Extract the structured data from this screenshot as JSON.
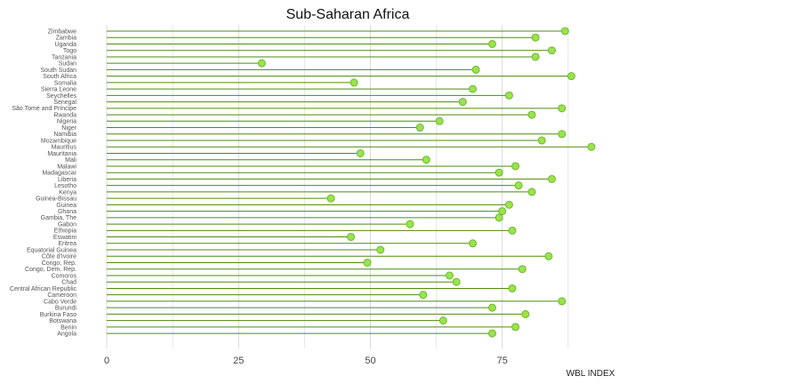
{
  "chart_data": {
    "type": "lollipop",
    "title": "Sub-Saharan Africa",
    "xlabel": "WBL INDEX",
    "ylabel": "",
    "xlim": [
      0,
      100
    ],
    "xticks": [
      0,
      25,
      50,
      75
    ],
    "grid": true,
    "colors": {
      "stem": "#4f8a10",
      "dot_fill": "#99e34d",
      "dot_stroke": "#6fb82e",
      "grid": "#d9d9d9"
    },
    "categories": [
      "Zimbabwe",
      "Zambia",
      "Uganda",
      "Togo",
      "Tanzania",
      "Sudan",
      "South Sudan",
      "South Africa",
      "Somalia",
      "Sierra Leone",
      "Seychelles",
      "Senegal",
      "São Tomé and Príncipe",
      "Rwanda",
      "Nigeria",
      "Niger",
      "Namibia",
      "Mozambique",
      "Mauritius",
      "Mauritania",
      "Mali",
      "Malawi",
      "Madagascar",
      "Liberia",
      "Lesotho",
      "Kenya",
      "Guinea-Bissau",
      "Guinea",
      "Ghana",
      "Gambia, The",
      "Gabon",
      "Ethiopia",
      "Eswatini",
      "Eritrea",
      "Equatorial Guinea",
      "Côte d'Ivoire",
      "Congo, Rep.",
      "Congo, Dem. Rep.",
      "Comoros",
      "Chad",
      "Central African Republic",
      "Cameroon",
      "Cabo Verde",
      "Burundi",
      "Burkina Faso",
      "Botswana",
      "Benin",
      "Angola"
    ],
    "values": [
      86.9,
      81.3,
      73.1,
      84.4,
      81.3,
      29.4,
      70.0,
      88.1,
      46.9,
      69.4,
      76.3,
      67.5,
      86.3,
      80.6,
      63.1,
      59.4,
      86.3,
      82.5,
      91.9,
      48.1,
      60.6,
      77.5,
      74.4,
      84.4,
      78.1,
      80.6,
      42.5,
      76.3,
      75.0,
      74.4,
      57.5,
      76.9,
      46.3,
      69.4,
      51.9,
      83.8,
      49.4,
      78.8,
      65.0,
      66.3,
      76.9,
      60.0,
      86.3,
      73.1,
      79.4,
      63.8,
      77.5,
      73.1
    ]
  }
}
